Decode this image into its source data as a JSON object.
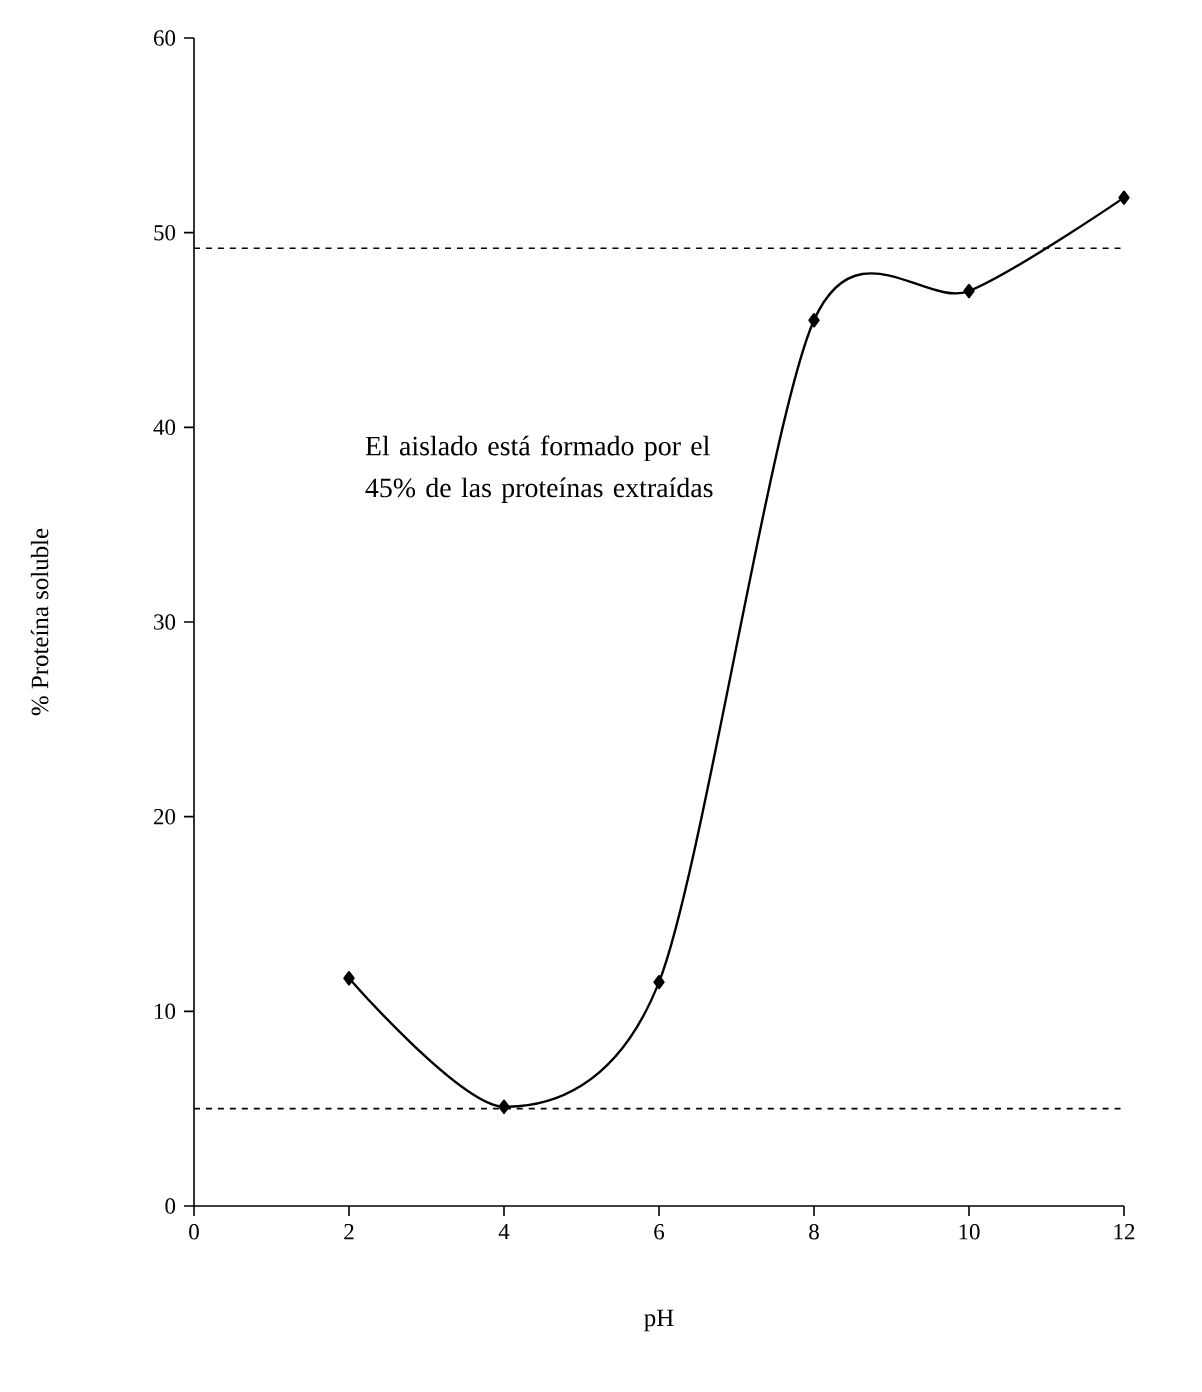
{
  "chart_data": {
    "type": "line",
    "xlabel": "pH",
    "ylabel": "% Proteína soluble",
    "x": [
      2,
      4,
      6,
      8,
      10,
      12
    ],
    "series": [
      {
        "color": "#000000",
        "values": [
          11.7,
          5.1,
          11.5,
          45.5,
          47,
          51.8
        ]
      }
    ],
    "xlim": [
      0,
      12
    ],
    "xticks": [
      0,
      2,
      4,
      6,
      8,
      10,
      12
    ],
    "ylim": [
      0,
      60
    ],
    "yticks": [
      0,
      10,
      20,
      30,
      40,
      50,
      60
    ],
    "marker": "diamond",
    "line_style": "solid",
    "grid": false,
    "ref_lines": [
      {
        "axis": "y",
        "value": 49.2,
        "color": "#000000",
        "line_style": "dashed"
      },
      {
        "axis": "y",
        "value": 5,
        "color": "#000000",
        "line_style": "dashed"
      }
    ],
    "annotations": [
      "El aislado está formado por el 45% de las proteínas extraídas"
    ]
  }
}
